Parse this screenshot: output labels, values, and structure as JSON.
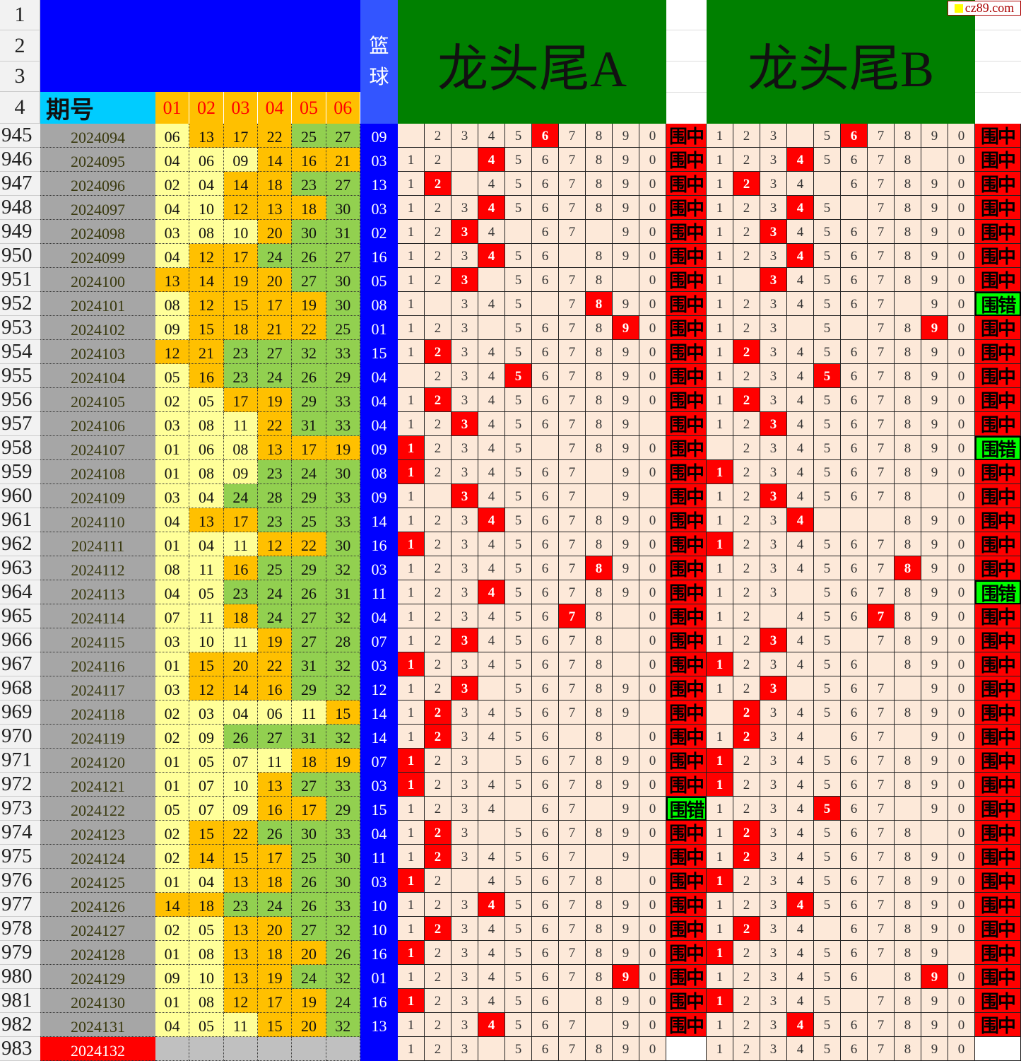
{
  "header": {
    "row_numbers": [
      "1",
      "2",
      "3",
      "4"
    ],
    "period_label": "期号",
    "ball_cols": [
      "01",
      "02",
      "03",
      "04",
      "05",
      "06"
    ],
    "blue_label_1": "篮",
    "blue_label_2": "球",
    "title_a": "龙头尾A",
    "title_b": "龙头尾B",
    "logo": "cz89.com"
  },
  "colors": {
    "low": "#ffff99",
    "mid": "#ffc000",
    "high": "#92d050",
    "blue": "#0000ff",
    "hit": "#ff0000",
    "miss": "#00ff00",
    "grid": "#fde9d9",
    "header_green": "#008000"
  },
  "rows": [
    {
      "id": "945",
      "period": "2024094",
      "nums": [
        "06",
        "13",
        "17",
        "22",
        "25",
        "27"
      ],
      "blue": "09",
      "a": "-234567890",
      "ha": "6",
      "ra": "围中",
      "b": "123-567890",
      "hb": "6",
      "rb": "围中"
    },
    {
      "id": "946",
      "period": "2024095",
      "nums": [
        "04",
        "06",
        "09",
        "14",
        "16",
        "21"
      ],
      "blue": "03",
      "a": "12-4567890",
      "ha": "4",
      "ra": "围中",
      "b": "12345678-0",
      "hb": "4",
      "rb": "围中"
    },
    {
      "id": "947",
      "period": "2024096",
      "nums": [
        "02",
        "04",
        "14",
        "18",
        "23",
        "27"
      ],
      "blue": "13",
      "a": "12-4567890",
      "ha": "2",
      "ra": "围中",
      "b": "1234-67890",
      "hb": "2",
      "rb": "围中"
    },
    {
      "id": "948",
      "period": "2024097",
      "nums": [
        "04",
        "10",
        "12",
        "13",
        "18",
        "30"
      ],
      "blue": "03",
      "a": "1234567890",
      "ha": "4",
      "ra": "围中",
      "b": "12345-7890",
      "hb": "4",
      "rb": "围中"
    },
    {
      "id": "949",
      "period": "2024098",
      "nums": [
        "03",
        "08",
        "10",
        "20",
        "30",
        "31"
      ],
      "blue": "02",
      "a": "1234-67-90",
      "ha": "3",
      "ra": "围中",
      "b": "1234567890",
      "hb": "3",
      "rb": "围中"
    },
    {
      "id": "950",
      "period": "2024099",
      "nums": [
        "04",
        "12",
        "17",
        "24",
        "26",
        "27"
      ],
      "blue": "16",
      "a": "123456-890",
      "ha": "4",
      "ra": "围中",
      "b": "1234567890",
      "hb": "4",
      "rb": "围中"
    },
    {
      "id": "951",
      "period": "2024100",
      "nums": [
        "13",
        "14",
        "19",
        "20",
        "27",
        "30"
      ],
      "blue": "05",
      "a": "123-5678-0",
      "ha": "3",
      "ra": "围中",
      "b": "1-34567890",
      "hb": "3",
      "rb": "围中"
    },
    {
      "id": "952",
      "period": "2024101",
      "nums": [
        "08",
        "12",
        "15",
        "17",
        "19",
        "30"
      ],
      "blue": "08",
      "a": "1-345-7890",
      "ha": "8",
      "ra": "围中",
      "b": "1234567-90",
      "hb": "",
      "rb": "围错"
    },
    {
      "id": "953",
      "period": "2024102",
      "nums": [
        "09",
        "15",
        "18",
        "21",
        "22",
        "25"
      ],
      "blue": "01",
      "a": "123-567890",
      "ha": "9",
      "ra": "围中",
      "b": "123-5-7890",
      "hb": "9",
      "rb": "围中"
    },
    {
      "id": "954",
      "period": "2024103",
      "nums": [
        "12",
        "21",
        "23",
        "27",
        "32",
        "33"
      ],
      "blue": "15",
      "a": "1234567890",
      "ha": "2",
      "ra": "围中",
      "b": "1234567890",
      "hb": "2",
      "rb": "围中"
    },
    {
      "id": "955",
      "period": "2024104",
      "nums": [
        "05",
        "16",
        "23",
        "24",
        "26",
        "29"
      ],
      "blue": "04",
      "a": "-234567890",
      "ha": "5",
      "ra": "围中",
      "b": "1234567890",
      "hb": "5",
      "rb": "围中"
    },
    {
      "id": "956",
      "period": "2024105",
      "nums": [
        "02",
        "05",
        "17",
        "19",
        "29",
        "33"
      ],
      "blue": "04",
      "a": "1234567890",
      "ha": "2",
      "ra": "围中",
      "b": "1234567890",
      "hb": "2",
      "rb": "围中"
    },
    {
      "id": "957",
      "period": "2024106",
      "nums": [
        "03",
        "08",
        "11",
        "22",
        "31",
        "33"
      ],
      "blue": "04",
      "a": "123456789-",
      "ha": "3",
      "ra": "围中",
      "b": "1234567890",
      "hb": "3",
      "rb": "围中"
    },
    {
      "id": "958",
      "period": "2024107",
      "nums": [
        "01",
        "06",
        "08",
        "13",
        "17",
        "19"
      ],
      "blue": "09",
      "a": "12345-7890",
      "ha": "1",
      "ra": "围中",
      "b": "-234567890",
      "hb": "",
      "rb": "围错"
    },
    {
      "id": "959",
      "period": "2024108",
      "nums": [
        "01",
        "08",
        "09",
        "23",
        "24",
        "30"
      ],
      "blue": "08",
      "a": "1234567-90",
      "ha": "1",
      "ra": "围中",
      "b": "1234567890",
      "hb": "1",
      "rb": "围中"
    },
    {
      "id": "960",
      "period": "2024109",
      "nums": [
        "03",
        "04",
        "24",
        "28",
        "29",
        "33"
      ],
      "blue": "09",
      "a": "1-34567-9-",
      "ha": "3",
      "ra": "围中",
      "b": "12345678-0",
      "hb": "3",
      "rb": "围中"
    },
    {
      "id": "961",
      "period": "2024110",
      "nums": [
        "04",
        "13",
        "17",
        "23",
        "25",
        "33"
      ],
      "blue": "14",
      "a": "1234567890",
      "ha": "4",
      "ra": "围中",
      "b": "1234---890",
      "hb": "4",
      "rb": "围中"
    },
    {
      "id": "962",
      "period": "2024111",
      "nums": [
        "01",
        "04",
        "11",
        "12",
        "22",
        "30"
      ],
      "blue": "16",
      "a": "1234567890",
      "ha": "1",
      "ra": "围中",
      "b": "1234567890",
      "hb": "1",
      "rb": "围中"
    },
    {
      "id": "963",
      "period": "2024112",
      "nums": [
        "08",
        "11",
        "16",
        "25",
        "29",
        "32"
      ],
      "blue": "03",
      "a": "1234567890",
      "ha": "8",
      "ra": "围中",
      "b": "1234567890",
      "hb": "8",
      "rb": "围中"
    },
    {
      "id": "964",
      "period": "2024113",
      "nums": [
        "04",
        "05",
        "23",
        "24",
        "26",
        "31"
      ],
      "blue": "11",
      "a": "1234567890",
      "ha": "4",
      "ra": "围中",
      "b": "123-567890",
      "hb": "",
      "rb": "围错"
    },
    {
      "id": "965",
      "period": "2024114",
      "nums": [
        "07",
        "11",
        "18",
        "24",
        "27",
        "32"
      ],
      "blue": "04",
      "a": "12345678-0",
      "ha": "7",
      "ra": "围中",
      "b": "12-4567890",
      "hb": "7",
      "rb": "围中"
    },
    {
      "id": "966",
      "period": "2024115",
      "nums": [
        "03",
        "10",
        "11",
        "19",
        "27",
        "28"
      ],
      "blue": "07",
      "a": "12345678-0",
      "ha": "3",
      "ra": "围中",
      "b": "12345-7890",
      "hb": "3",
      "rb": "围中"
    },
    {
      "id": "967",
      "period": "2024116",
      "nums": [
        "01",
        "15",
        "20",
        "22",
        "31",
        "32"
      ],
      "blue": "03",
      "a": "12345678-0",
      "ha": "1",
      "ra": "围中",
      "b": "123456-890",
      "hb": "1",
      "rb": "围中"
    },
    {
      "id": "968",
      "period": "2024117",
      "nums": [
        "03",
        "12",
        "14",
        "16",
        "29",
        "32"
      ],
      "blue": "12",
      "a": "123-567890",
      "ha": "3",
      "ra": "围中",
      "b": "123-567-90",
      "hb": "3",
      "rb": "围中"
    },
    {
      "id": "969",
      "period": "2024118",
      "nums": [
        "02",
        "03",
        "04",
        "06",
        "11",
        "15"
      ],
      "blue": "14",
      "a": "123456789-",
      "ha": "2",
      "ra": "围中",
      "b": "-234567890",
      "hb": "2",
      "rb": "围中"
    },
    {
      "id": "970",
      "period": "2024119",
      "nums": [
        "02",
        "09",
        "26",
        "27",
        "31",
        "32"
      ],
      "blue": "14",
      "a": "123456-8-0",
      "ha": "2",
      "ra": "围中",
      "b": "1234-67-90",
      "hb": "2",
      "rb": "围中"
    },
    {
      "id": "971",
      "period": "2024120",
      "nums": [
        "01",
        "05",
        "07",
        "11",
        "18",
        "19"
      ],
      "blue": "07",
      "a": "123-567890",
      "ha": "1",
      "ra": "围中",
      "b": "1234567890",
      "hb": "1",
      "rb": "围中"
    },
    {
      "id": "972",
      "period": "2024121",
      "nums": [
        "01",
        "07",
        "10",
        "13",
        "27",
        "33"
      ],
      "blue": "03",
      "a": "1234567890",
      "ha": "1",
      "ra": "围中",
      "b": "1234567890",
      "hb": "1",
      "rb": "围中"
    },
    {
      "id": "973",
      "period": "2024122",
      "nums": [
        "05",
        "07",
        "09",
        "16",
        "17",
        "29"
      ],
      "blue": "15",
      "a": "1234-67-90",
      "ha": "",
      "ra": "围错",
      "b": "1234567-90",
      "hb": "5",
      "rb": "围中"
    },
    {
      "id": "974",
      "period": "2024123",
      "nums": [
        "02",
        "15",
        "22",
        "26",
        "30",
        "33"
      ],
      "blue": "04",
      "a": "123-567890",
      "ha": "2",
      "ra": "围中",
      "b": "12345678-0",
      "hb": "2",
      "rb": "围中"
    },
    {
      "id": "975",
      "period": "2024124",
      "nums": [
        "02",
        "14",
        "15",
        "17",
        "25",
        "30"
      ],
      "blue": "11",
      "a": "1234567-9-",
      "ha": "2",
      "ra": "围中",
      "b": "1234567890",
      "hb": "2",
      "rb": "围中"
    },
    {
      "id": "976",
      "period": "2024125",
      "nums": [
        "01",
        "04",
        "13",
        "18",
        "26",
        "30"
      ],
      "blue": "03",
      "a": "12-45678-0",
      "ha": "1",
      "ra": "围中",
      "b": "1234567890",
      "hb": "1",
      "rb": "围中"
    },
    {
      "id": "977",
      "period": "2024126",
      "nums": [
        "14",
        "18",
        "23",
        "24",
        "26",
        "33"
      ],
      "blue": "10",
      "a": "1234567890",
      "ha": "4",
      "ra": "围中",
      "b": "1234567890",
      "hb": "4",
      "rb": "围中"
    },
    {
      "id": "978",
      "period": "2024127",
      "nums": [
        "02",
        "05",
        "13",
        "20",
        "27",
        "32"
      ],
      "blue": "10",
      "a": "1234567890",
      "ha": "2",
      "ra": "围中",
      "b": "1234-67890",
      "hb": "2",
      "rb": "围中"
    },
    {
      "id": "979",
      "period": "2024128",
      "nums": [
        "01",
        "08",
        "13",
        "18",
        "20",
        "26"
      ],
      "blue": "16",
      "a": "1234567890",
      "ha": "1",
      "ra": "围中",
      "b": "123456789-",
      "hb": "1",
      "rb": "围中"
    },
    {
      "id": "980",
      "period": "2024129",
      "nums": [
        "09",
        "10",
        "13",
        "19",
        "24",
        "32"
      ],
      "blue": "01",
      "a": "1234567890",
      "ha": "9",
      "ra": "围中",
      "b": "123456-890",
      "hb": "9",
      "rb": "围中"
    },
    {
      "id": "981",
      "period": "2024130",
      "nums": [
        "01",
        "08",
        "12",
        "17",
        "19",
        "24"
      ],
      "blue": "16",
      "a": "123456-890",
      "ha": "1",
      "ra": "围中",
      "b": "12345-7890",
      "hb": "1",
      "rb": "围中"
    },
    {
      "id": "982",
      "period": "2024131",
      "nums": [
        "04",
        "05",
        "11",
        "15",
        "20",
        "32"
      ],
      "blue": "13",
      "a": "1234567-90",
      "ha": "4",
      "ra": "围中",
      "b": "1234567890",
      "hb": "4",
      "rb": "围中"
    },
    {
      "id": "983",
      "period": "2024132",
      "nums": [
        "",
        "",
        "",
        "",
        "",
        ""
      ],
      "blue": "",
      "a": "123-567890",
      "ha": "",
      "ra": "",
      "b": "1234567890",
      "hb": "",
      "rb": ""
    }
  ]
}
